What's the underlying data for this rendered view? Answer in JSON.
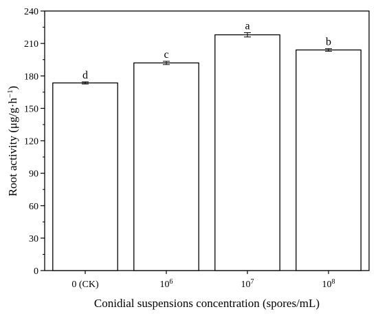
{
  "chart_data": {
    "type": "bar",
    "xlabel": "Conidial suspensions concentration (spores/mL)",
    "ylabel": {
      "main": "Root activity (μg/g·h",
      "exp": "−1",
      "close": ")"
    },
    "ylim": [
      0,
      240
    ],
    "yticks": [
      "0",
      "30",
      "60",
      "90",
      "120",
      "150",
      "180",
      "210",
      "240"
    ],
    "categories": [
      {
        "base": "0 (CK)",
        "exp": ""
      },
      {
        "base": "10",
        "exp": "6"
      },
      {
        "base": "10",
        "exp": "7"
      },
      {
        "base": "10",
        "exp": "8"
      }
    ],
    "values": [
      173.5,
      192,
      218,
      204
    ],
    "errors": [
      1.0,
      1.5,
      2.0,
      1.2
    ],
    "letters": [
      "d",
      "c",
      "a",
      "b"
    ],
    "grid": false,
    "colors": {
      "bar_fill": "#ffffff",
      "bar_stroke": "#000000"
    }
  }
}
